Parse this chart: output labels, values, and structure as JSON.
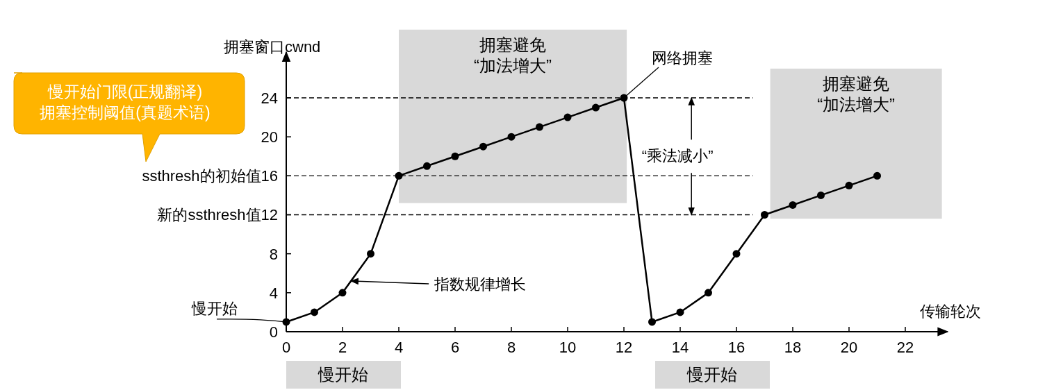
{
  "chart_data": {
    "type": "line",
    "xlabel": "传输轮次",
    "ylabel": "拥塞窗口cwnd",
    "x": [
      0,
      1,
      2,
      3,
      4,
      5,
      6,
      7,
      8,
      9,
      10,
      11,
      12,
      13,
      14,
      15,
      16,
      17,
      18,
      19,
      20,
      21
    ],
    "series": [
      {
        "color": "#000000",
        "values": [
          1,
          2,
          4,
          8,
          16,
          17,
          18,
          19,
          20,
          21,
          22,
          23,
          24,
          1,
          2,
          4,
          8,
          12,
          13,
          14,
          15,
          16
        ]
      }
    ],
    "marker": "circle",
    "line_style": "solid",
    "xlim": [
      0,
      23.5
    ],
    "ylim": [
      0,
      28.7
    ],
    "xticks": [
      0,
      2,
      4,
      6,
      8,
      10,
      12,
      14,
      16,
      18,
      20,
      22
    ],
    "yticks": [
      0,
      4,
      8,
      {
        "value": 12,
        "label": "新的ssthresh值12"
      },
      {
        "value": 16,
        "label": "ssthresh的初始值16"
      },
      20,
      24
    ],
    "ref_lines": [
      {
        "axis": "y",
        "value": 24,
        "line_style": "dashed",
        "color": "#000000"
      },
      {
        "axis": "y",
        "value": 16,
        "line_style": "dashed",
        "color": "#000000"
      },
      {
        "axis": "y",
        "value": 12,
        "line_style": "dashed",
        "color": "#000000"
      }
    ],
    "bands": [
      {
        "axis": "x",
        "from": 4,
        "to": 12.1,
        "label": "拥塞避免\n“加法增大”",
        "color": "#d9d9d9"
      },
      {
        "axis": "x",
        "from": 17.2,
        "to": 23.3,
        "label": "拥塞避免\n“加法增大”",
        "color": "#d9d9d9"
      }
    ],
    "annotations": [
      {
        "text": "网络拥塞",
        "x": 12,
        "y": 24
      },
      {
        "text": "指数规律增长",
        "x": 2.3,
        "y": 5.2
      },
      {
        "text": "慢开始",
        "x": 0,
        "y": 1
      },
      {
        "text": "“乘法减小”",
        "x": 14.4,
        "y": 24
      },
      "慢开始门限(正规翻译)\n拥塞控制阈值(真题术语)",
      "慢开始",
      "慢开始"
    ]
  }
}
